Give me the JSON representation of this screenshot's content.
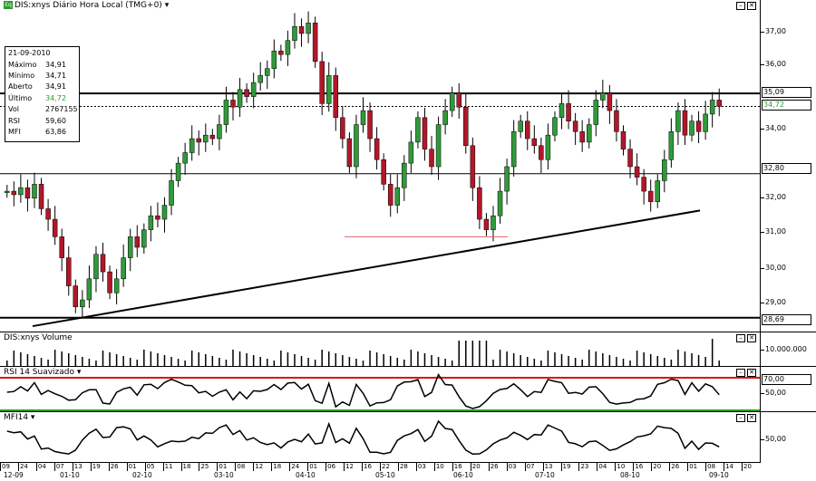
{
  "header": {
    "symbol_badge": "Eq",
    "title": "DIS:xnys Diário Hora Local (TMG+0)",
    "dropdown": "▾"
  },
  "info_box": {
    "date": "21-09-2010",
    "rows": [
      {
        "label": "Máximo",
        "value": "34,91"
      },
      {
        "label": "Mínimo",
        "value": "34,71"
      },
      {
        "label": "Aberto",
        "value": "34,91"
      },
      {
        "label": "Último",
        "value": "34,72"
      },
      {
        "label": "Vol",
        "value": "2767155"
      },
      {
        "label": "RSI",
        "value": "59,60"
      },
      {
        "label": "MFI",
        "value": "63,86"
      }
    ]
  },
  "window_buttons": {
    "minimize": "–",
    "close": "✕"
  },
  "price_panel": {
    "ticks": [
      "37,00",
      "36,00",
      "35,00",
      "34,00",
      "33,00",
      "32,00",
      "31,00",
      "30,00",
      "29,00"
    ],
    "hlines": [
      {
        "label": "35,09",
        "value": 35.09
      },
      {
        "label": "34,72",
        "value": 34.72
      },
      {
        "label": "32,80",
        "value": 32.8
      },
      {
        "label": "28,69",
        "value": 28.69
      }
    ]
  },
  "volume_panel": {
    "title": "DIS:xnys Volume",
    "tick": "10.000.000"
  },
  "rsi_panel": {
    "title": "RSI 14 Suavizado ▾",
    "ticks": [
      "70,00",
      "50,00"
    ]
  },
  "mfi_panel": {
    "title": "MFI14 ▾",
    "tick": "50,00"
  },
  "colors": {
    "up": "#2f9a3a",
    "down": "#b0182a",
    "rsi_upper": "#e01010",
    "rsi_lower": "#20a020"
  },
  "x_axis": {
    "days": [
      "09",
      "24",
      "04",
      "07",
      "13",
      "19",
      "26",
      "01",
      "05",
      "11",
      "18",
      "25",
      "01",
      "08",
      "12",
      "18",
      "24",
      "01",
      "06",
      "12",
      "16",
      "22",
      "28",
      "03",
      "10",
      "16",
      "20",
      "26",
      "03",
      "07",
      "13",
      "19",
      "23",
      "04",
      "10",
      "16",
      "20",
      "26",
      "01",
      "08",
      "14",
      "20"
    ],
    "months": [
      "12-09",
      "01-10",
      "02-10",
      "03-10",
      "04-10",
      "05-10",
      "06-10",
      "07-10",
      "08-10",
      "09-10"
    ]
  },
  "chart_data": {
    "type": "candlestick",
    "title": "DIS:xnys Diário Hora Local (TMG+0)",
    "ylim": [
      28.4,
      37.6
    ],
    "close_series": [
      32.3,
      32.2,
      32.4,
      32.1,
      32.5,
      31.8,
      31.5,
      31.0,
      30.4,
      29.6,
      29.0,
      29.2,
      29.8,
      30.5,
      30.0,
      29.4,
      29.8,
      30.4,
      31.0,
      30.7,
      31.2,
      31.6,
      31.5,
      31.9,
      32.6,
      33.1,
      33.4,
      33.8,
      33.7,
      33.9,
      33.8,
      34.2,
      34.9,
      34.7,
      35.2,
      35.0,
      35.4,
      35.6,
      35.8,
      36.3,
      36.2,
      36.6,
      37.0,
      36.8,
      37.1,
      36.0,
      34.8,
      35.6,
      34.4,
      33.8,
      33.0,
      34.2,
      34.6,
      33.8,
      33.2,
      32.5,
      31.9,
      32.4,
      33.1,
      33.7,
      34.4,
      33.5,
      33.0,
      34.2,
      34.6,
      35.1,
      34.7,
      33.6,
      32.4,
      31.5,
      31.2,
      31.6,
      32.3,
      33.0,
      34.0,
      34.3,
      33.8,
      33.6,
      33.2,
      33.9,
      34.4,
      34.8,
      34.3,
      34.0,
      33.7,
      34.2,
      34.9,
      35.1,
      34.6,
      34.0,
      33.5,
      33.0,
      32.7,
      32.3,
      32.0,
      32.6,
      33.2,
      34.0,
      34.6,
      33.9,
      34.3,
      34.0,
      34.5,
      34.9,
      34.72
    ],
    "support_line": {
      "from": [
        "2009-12",
        28.5
      ],
      "to": [
        "2010-09",
        31.75
      ]
    },
    "resistance": 35.09,
    "last": 34.72,
    "volume_tick": 10000000,
    "rsi": {
      "upper": 70,
      "lower": 30
    },
    "mfi": {
      "mid": 50
    },
    "info": {
      "date": "21-09-2010",
      "high": 34.91,
      "low": 34.71,
      "open": 34.91,
      "last": 34.72,
      "volume": 2767155,
      "rsi": 59.6,
      "mfi": 63.86
    }
  }
}
